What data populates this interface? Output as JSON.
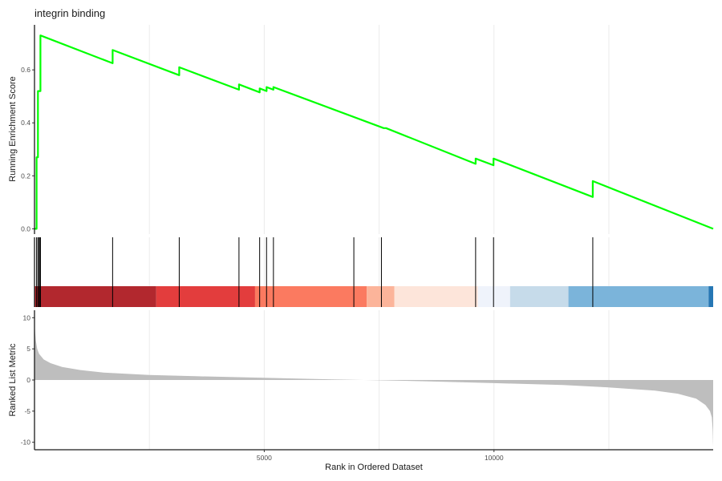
{
  "chart_data": {
    "type": "line",
    "title": "integrin binding",
    "xlabel": "Rank in Ordered Dataset",
    "x_ticks": [
      5000,
      10000
    ],
    "x_tick_labels": [
      "5000",
      "10000"
    ],
    "xlim": [
      0,
      14770
    ],
    "grid": true,
    "panels": {
      "enrichment": {
        "ylabel": "Running Enrichment Score",
        "ylim": [
          -0.02,
          0.77
        ],
        "y_ticks": [
          0.0,
          0.2,
          0.4,
          0.6
        ],
        "y_tick_labels": [
          "0.0",
          "0.2",
          "0.4",
          "0.6"
        ],
        "series": [
          {
            "color": "#00ff00",
            "x": [
              0,
              45,
              45,
              75,
              75,
              90,
              90,
              115,
              115,
              130,
              130,
              1700,
              1700,
              3150,
              3150,
              4450,
              4450,
              4900,
              4900,
              5050,
              5050,
              5200,
              5200,
              7600,
              7650,
              9600,
              9600,
              9990,
              9990,
              12150,
              12150,
              14770
            ],
            "y": [
              0.0,
              0.0,
              0.27,
              0.27,
              0.52,
              0.52,
              0.52,
              0.52,
              0.52,
              0.52,
              0.73,
              0.625,
              0.675,
              0.58,
              0.61,
              0.525,
              0.545,
              0.515,
              0.53,
              0.52,
              0.535,
              0.525,
              0.535,
              0.38,
              0.38,
              0.245,
              0.265,
              0.24,
              0.265,
              0.12,
              0.18,
              0.0
            ]
          }
        ]
      },
      "hits": {
        "gene_set_positions": [
          45,
          75,
          90,
          115,
          130,
          1700,
          3150,
          4450,
          4900,
          5050,
          5200,
          6950,
          7550,
          9600,
          9990,
          12150
        ]
      },
      "color_bar": {
        "segments": [
          {
            "start": 0,
            "end": 2650,
            "color": "#b2282e"
          },
          {
            "start": 2650,
            "end": 4800,
            "color": "#e33d3d"
          },
          {
            "start": 4800,
            "end": 7230,
            "color": "#fb7a60"
          },
          {
            "start": 7230,
            "end": 7830,
            "color": "#fcb49a"
          },
          {
            "start": 7830,
            "end": 9650,
            "color": "#fde5da"
          },
          {
            "start": 9650,
            "end": 10350,
            "color": "#eff3fb"
          },
          {
            "start": 10350,
            "end": 11620,
            "color": "#c6dbea"
          },
          {
            "start": 11620,
            "end": 14670,
            "color": "#7bb4da"
          },
          {
            "start": 14670,
            "end": 14770,
            "color": "#2677b4"
          }
        ]
      },
      "ranked_metric": {
        "ylabel": "Ranked List Metric",
        "ylim": [
          -11.2,
          11.2
        ],
        "y_ticks": [
          10,
          5,
          0,
          -5,
          -10
        ],
        "y_tick_labels": [
          "10",
          "5",
          "0",
          "-5",
          "-10"
        ],
        "fill_color": "#bebebe",
        "x": [
          0,
          10,
          30,
          60,
          100,
          200,
          350,
          600,
          1000,
          1500,
          2500,
          3500,
          5000,
          6500,
          7500,
          8500,
          10000,
          11500,
          12500,
          13500,
          14000,
          14400,
          14600,
          14700,
          14740,
          14760,
          14770
        ],
        "y": [
          10.0,
          8.0,
          6.3,
          5.0,
          4.2,
          3.3,
          2.7,
          2.1,
          1.6,
          1.2,
          0.8,
          0.6,
          0.35,
          0.1,
          -0.05,
          -0.2,
          -0.5,
          -0.8,
          -1.2,
          -1.7,
          -2.2,
          -3.0,
          -4.0,
          -5.0,
          -6.0,
          -8.0,
          -10.7
        ]
      }
    }
  }
}
